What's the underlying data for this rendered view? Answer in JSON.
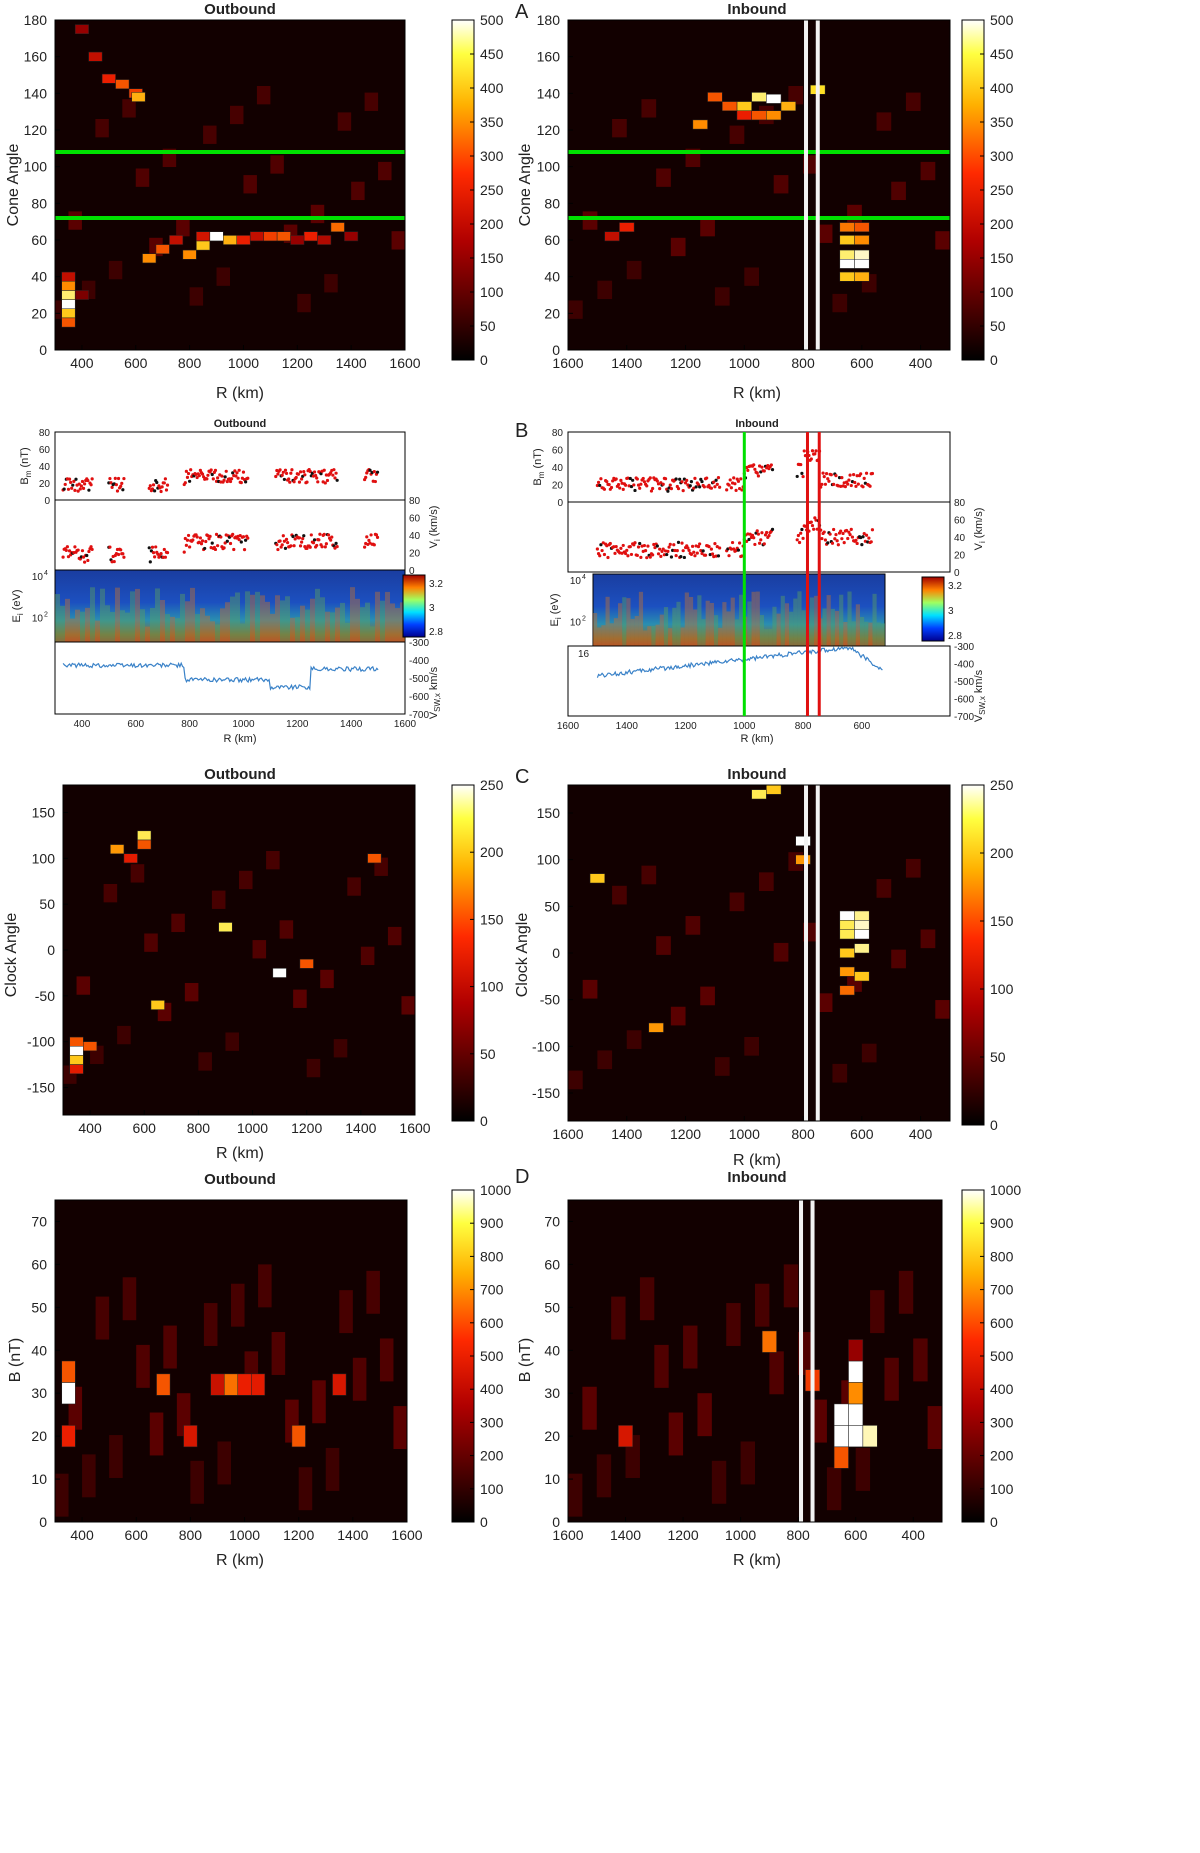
{
  "colors": {
    "green_line": "#00e000",
    "white_line": "#f2f2f2",
    "red_line": "#e01010",
    "vsw_line": "#3a82c8",
    "bm_red": "#e01010",
    "bm_black": "#111111"
  },
  "panel_letters": [
    "A",
    "B",
    "C",
    "D"
  ],
  "chart_data": [
    {
      "id": "A_outbound",
      "type": "heatmap",
      "title": "Outbound",
      "xlabel": "R (km)",
      "ylabel": "Cone Angle",
      "xlim": [
        300,
        1600
      ],
      "ylim": [
        0,
        180
      ],
      "xticks": [
        400,
        600,
        800,
        1000,
        1200,
        1400,
        1600
      ],
      "yticks": [
        0,
        20,
        40,
        60,
        80,
        100,
        120,
        140,
        160,
        180
      ],
      "colorbar": {
        "min": 0,
        "max": 500,
        "ticks": [
          0,
          50,
          100,
          150,
          200,
          250,
          300,
          350,
          400,
          450,
          500
        ]
      },
      "hlines": [
        72,
        108
      ],
      "cells": [
        [
          350,
          25,
          500
        ],
        [
          350,
          30,
          450
        ],
        [
          350,
          20,
          400
        ],
        [
          350,
          35,
          350
        ],
        [
          350,
          15,
          300
        ],
        [
          350,
          40,
          200
        ],
        [
          400,
          30,
          120
        ],
        [
          650,
          50,
          350
        ],
        [
          700,
          55,
          300
        ],
        [
          800,
          52,
          350
        ],
        [
          850,
          57,
          400
        ],
        [
          900,
          62,
          500
        ],
        [
          950,
          60,
          380
        ],
        [
          1000,
          60,
          250
        ],
        [
          1100,
          62,
          280
        ],
        [
          1150,
          62,
          300
        ],
        [
          1250,
          62,
          250
        ],
        [
          1350,
          67,
          320
        ],
        [
          1400,
          62,
          150
        ],
        [
          500,
          148,
          250
        ],
        [
          550,
          145,
          300
        ],
        [
          600,
          140,
          280
        ],
        [
          610,
          138,
          380
        ],
        [
          450,
          160,
          200
        ],
        [
          400,
          175,
          150
        ],
        [
          750,
          60,
          200
        ],
        [
          850,
          62,
          220
        ],
        [
          1050,
          62,
          200
        ],
        [
          1200,
          60,
          150
        ],
        [
          1300,
          60,
          180
        ]
      ]
    },
    {
      "id": "A_inbound",
      "type": "heatmap",
      "title": "Inbound",
      "xlabel": "R (km)",
      "ylabel": "Cone Angle",
      "xlim": [
        1600,
        300
      ],
      "ylim": [
        0,
        180
      ],
      "xticks": [
        1600,
        1400,
        1200,
        1000,
        800,
        600,
        400
      ],
      "yticks": [
        0,
        20,
        40,
        60,
        80,
        100,
        120,
        140,
        160,
        180
      ],
      "colorbar": {
        "min": 0,
        "max": 500,
        "ticks": [
          0,
          50,
          100,
          150,
          200,
          250,
          300,
          350,
          400,
          450,
          500
        ]
      },
      "hlines": [
        72,
        108
      ],
      "vlines": [
        790,
        750
      ],
      "cells": [
        [
          1150,
          123,
          350
        ],
        [
          1100,
          138,
          300
        ],
        [
          1000,
          133,
          400
        ],
        [
          950,
          138,
          450
        ],
        [
          900,
          137,
          500
        ],
        [
          850,
          133,
          380
        ],
        [
          750,
          142,
          420
        ],
        [
          1050,
          133,
          300
        ],
        [
          1000,
          128,
          250
        ],
        [
          950,
          128,
          300
        ],
        [
          900,
          128,
          350
        ],
        [
          650,
          47,
          500
        ],
        [
          600,
          47,
          500
        ],
        [
          650,
          52,
          450
        ],
        [
          600,
          52,
          480
        ],
        [
          650,
          40,
          400
        ],
        [
          600,
          40,
          380
        ],
        [
          650,
          60,
          400
        ],
        [
          600,
          60,
          350
        ],
        [
          650,
          67,
          330
        ],
        [
          600,
          67,
          300
        ],
        [
          1400,
          67,
          250
        ],
        [
          1450,
          62,
          200
        ]
      ]
    },
    {
      "id": "B_outbound",
      "type": "line",
      "title": "Outbound",
      "xlabel": "R (km)",
      "xlim": [
        300,
        1600
      ],
      "xticks": [
        400,
        600,
        800,
        1000,
        1200,
        1400,
        1600
      ],
      "series": [
        {
          "name": "B_m (nT)",
          "label": "B",
          "sub": "m",
          "unit": "(nT)",
          "ylim": [
            0,
            80
          ],
          "yticks": [
            0,
            20,
            40,
            60,
            80
          ]
        },
        {
          "name": "V_i (km/s)",
          "label": "V",
          "sub": "i",
          "unit": "(km/s)",
          "ylim": [
            0,
            80
          ],
          "yticks": [
            0,
            20,
            40,
            60,
            80
          ]
        },
        {
          "name": "E_i (eV)",
          "label": "E",
          "sub": "i",
          "unit": "(eV)",
          "yticks_text": [
            "10",
            "10"
          ],
          "ytick_exp": [
            "4",
            "2"
          ],
          "colorbar_ticks": [
            "3.2",
            "3",
            "2.8"
          ]
        },
        {
          "name": "V_SW,x km/s",
          "label": "V",
          "sub": "SW,x",
          "unit": "km/s",
          "ylim": [
            -700,
            -300
          ],
          "yticks": [
            -300,
            -400,
            -500,
            -600,
            -700
          ]
        }
      ]
    },
    {
      "id": "B_inbound",
      "type": "line",
      "title": "Inbound",
      "xlabel": "R (km)",
      "xlim": [
        1600,
        300
      ],
      "xticks": [
        1600,
        1400,
        1200,
        1000,
        800,
        600
      ],
      "vlines_green": [
        1000
      ],
      "vlines_red": [
        785,
        745
      ],
      "extra_tick": "16",
      "series": [
        {
          "name": "B_m (nT)",
          "label": "B",
          "sub": "m",
          "unit": "(nT)",
          "ylim": [
            0,
            80
          ],
          "yticks": [
            0,
            20,
            40,
            60,
            80
          ]
        },
        {
          "name": "V_i (km/s)",
          "label": "V",
          "sub": "i",
          "unit": "(km/s)",
          "ylim": [
            0,
            80
          ],
          "yticks": [
            0,
            20,
            40,
            60,
            80
          ]
        },
        {
          "name": "E_i (eV)",
          "label": "E",
          "sub": "i",
          "unit": "(eV)",
          "yticks_text": [
            "10",
            "10"
          ],
          "ytick_exp": [
            "4",
            "2"
          ],
          "colorbar_ticks": [
            "3.2",
            "3",
            "2.8"
          ]
        },
        {
          "name": "V_SW,x km/s",
          "label": "V",
          "sub": "SW,x",
          "unit": "km/s",
          "ylim": [
            -700,
            -300
          ],
          "yticks": [
            -300,
            -400,
            -500,
            -600,
            -700
          ]
        }
      ]
    },
    {
      "id": "C_outbound",
      "type": "heatmap",
      "title": "Outbound",
      "xlabel": "R (km)",
      "ylabel": "Clock Angle",
      "xlim": [
        300,
        1600
      ],
      "ylim": [
        -180,
        180
      ],
      "xticks": [
        400,
        600,
        800,
        1000,
        1200,
        1400,
        1600
      ],
      "yticks": [
        -150,
        -100,
        -50,
        0,
        50,
        100,
        150
      ],
      "colorbar": {
        "min": 0,
        "max": 250,
        "ticks": [
          0,
          50,
          100,
          150,
          200,
          250
        ]
      },
      "cells": [
        [
          350,
          -110,
          250
        ],
        [
          350,
          -120,
          200
        ],
        [
          350,
          -100,
          150
        ],
        [
          350,
          -130,
          120
        ],
        [
          400,
          -105,
          150
        ],
        [
          500,
          110,
          180
        ],
        [
          600,
          125,
          220
        ],
        [
          650,
          -60,
          200
        ],
        [
          900,
          25,
          220
        ],
        [
          1100,
          -25,
          250
        ],
        [
          1200,
          -15,
          150
        ],
        [
          1450,
          100,
          150
        ],
        [
          600,
          115,
          150
        ],
        [
          550,
          100,
          120
        ]
      ]
    },
    {
      "id": "C_inbound",
      "type": "heatmap",
      "title": "Inbound",
      "xlabel": "R (km)",
      "ylabel": "Clock Angle",
      "xlim": [
        1600,
        300
      ],
      "ylim": [
        -180,
        180
      ],
      "xticks": [
        1600,
        1400,
        1200,
        1000,
        800,
        600,
        400
      ],
      "yticks": [
        -150,
        -100,
        -50,
        0,
        50,
        100,
        150
      ],
      "colorbar": {
        "min": 0,
        "max": 250,
        "ticks": [
          0,
          50,
          100,
          150,
          200,
          250
        ]
      },
      "vlines": [
        790,
        750
      ],
      "cells": [
        [
          650,
          40,
          250
        ],
        [
          600,
          40,
          230
        ],
        [
          650,
          20,
          220
        ],
        [
          600,
          20,
          250
        ],
        [
          650,
          0,
          200
        ],
        [
          600,
          5,
          230
        ],
        [
          650,
          -20,
          180
        ],
        [
          600,
          -25,
          200
        ],
        [
          650,
          30,
          220
        ],
        [
          600,
          30,
          240
        ],
        [
          650,
          -40,
          160
        ],
        [
          950,
          170,
          220
        ],
        [
          900,
          175,
          200
        ],
        [
          1500,
          80,
          200
        ],
        [
          800,
          120,
          250
        ],
        [
          800,
          100,
          180
        ],
        [
          1300,
          -80,
          180
        ]
      ]
    },
    {
      "id": "D_outbound",
      "type": "heatmap",
      "title": "Outbound",
      "xlabel": "R (km)",
      "ylabel": "B (nT)",
      "xlim": [
        300,
        1600
      ],
      "ylim": [
        0,
        75
      ],
      "xticks": [
        400,
        600,
        800,
        1000,
        1200,
        1400,
        1600
      ],
      "yticks": [
        0,
        10,
        20,
        30,
        40,
        50,
        60,
        70
      ],
      "colorbar": {
        "min": 0,
        "max": 1000,
        "ticks": [
          0,
          100,
          200,
          300,
          400,
          500,
          600,
          700,
          800,
          900,
          1000
        ]
      },
      "cells": [
        [
          350,
          30,
          1000
        ],
        [
          350,
          35,
          600
        ],
        [
          350,
          20,
          500
        ],
        [
          700,
          32,
          600
        ],
        [
          950,
          32,
          650
        ],
        [
          1000,
          32,
          500
        ],
        [
          1200,
          20,
          600
        ],
        [
          800,
          20,
          450
        ],
        [
          1050,
          32,
          480
        ],
        [
          1350,
          32,
          450
        ],
        [
          900,
          32,
          420
        ]
      ]
    },
    {
      "id": "D_inbound",
      "type": "heatmap",
      "title": "Inbound",
      "xlabel": "R (km)",
      "ylabel": "B (nT)",
      "xlim": [
        1600,
        300
      ],
      "ylim": [
        0,
        75
      ],
      "xticks": [
        1600,
        1400,
        1200,
        1000,
        800,
        600,
        400
      ],
      "yticks": [
        0,
        10,
        20,
        30,
        40,
        50,
        60,
        70
      ],
      "colorbar": {
        "min": 0,
        "max": 1000,
        "ticks": [
          0,
          100,
          200,
          300,
          400,
          500,
          600,
          700,
          800,
          900,
          1000
        ]
      },
      "vlines": [
        790,
        750
      ],
      "cells": [
        [
          600,
          35,
          1000
        ],
        [
          600,
          25,
          1000
        ],
        [
          650,
          25,
          1000
        ],
        [
          650,
          20,
          1000
        ],
        [
          600,
          20,
          1000
        ],
        [
          550,
          20,
          950
        ],
        [
          600,
          30,
          700
        ],
        [
          650,
          15,
          600
        ],
        [
          900,
          42,
          650
        ],
        [
          750,
          33,
          550
        ],
        [
          1400,
          20,
          450
        ],
        [
          600,
          40,
          300
        ]
      ]
    }
  ]
}
